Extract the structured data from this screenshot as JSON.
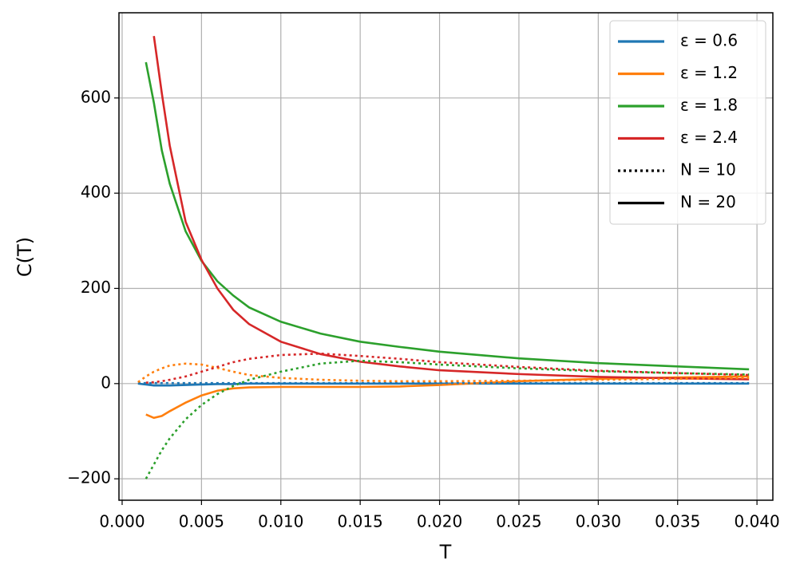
{
  "chart_data": {
    "type": "line",
    "xlabel": "T",
    "ylabel": "C(T)",
    "x": [
      0.001,
      0.0015,
      0.002,
      0.0025,
      0.003,
      0.004,
      0.005,
      0.006,
      0.007,
      0.008,
      0.01,
      0.0125,
      0.015,
      0.0175,
      0.02,
      0.025,
      0.03,
      0.035,
      0.0395
    ],
    "series": [
      {
        "color": "#1f77b4",
        "linestyle": "solid",
        "values": [
          0,
          -2,
          -4,
          -4,
          -4,
          -3,
          -2,
          -1,
          -1,
          0,
          0,
          0,
          0,
          0,
          0,
          0,
          0,
          0,
          0
        ]
      },
      {
        "color": "#ff7f0e",
        "linestyle": "solid",
        "values": [
          null,
          -65,
          -72,
          -68,
          -58,
          -40,
          -25,
          -15,
          -10,
          -8,
          -7,
          -7,
          -7,
          -6,
          -3,
          5,
          10,
          13,
          15
        ]
      },
      {
        "color": "#2ca02c",
        "linestyle": "solid",
        "values": [
          null,
          675,
          590,
          490,
          420,
          320,
          258,
          215,
          185,
          160,
          130,
          105,
          88,
          77,
          67,
          53,
          43,
          36,
          30
        ]
      },
      {
        "color": "#d62728",
        "linestyle": "solid",
        "values": [
          null,
          null,
          730,
          610,
          500,
          340,
          260,
          200,
          155,
          125,
          88,
          62,
          46,
          36,
          28,
          20,
          14,
          11,
          9
        ]
      },
      {
        "color": "#1f77b4",
        "linestyle": "dotted",
        "values": [
          1,
          1,
          1,
          1,
          1,
          1,
          1,
          1,
          1,
          1,
          1,
          1,
          1,
          1,
          1,
          1,
          1,
          1,
          1
        ]
      },
      {
        "color": "#ff7f0e",
        "linestyle": "dotted",
        "values": [
          3,
          15,
          25,
          32,
          38,
          42,
          40,
          33,
          25,
          18,
          12,
          8,
          6,
          5,
          5,
          6,
          8,
          10,
          12
        ]
      },
      {
        "color": "#2ca02c",
        "linestyle": "dotted",
        "values": [
          null,
          -200,
          -170,
          -140,
          -115,
          -75,
          -45,
          -22,
          -5,
          8,
          25,
          42,
          48,
          45,
          40,
          32,
          26,
          22,
          19
        ]
      },
      {
        "color": "#d62728",
        "linestyle": "dotted",
        "values": [
          null,
          2,
          3,
          5,
          8,
          15,
          25,
          35,
          45,
          52,
          60,
          63,
          58,
          52,
          45,
          35,
          27,
          22,
          18
        ]
      }
    ],
    "legend": [
      {
        "label": "ε = 0.6",
        "color": "#1f77b4",
        "linestyle": "solid"
      },
      {
        "label": "ε = 1.2",
        "color": "#ff7f0e",
        "linestyle": "solid"
      },
      {
        "label": "ε = 1.8",
        "color": "#2ca02c",
        "linestyle": "solid"
      },
      {
        "label": "ε = 2.4",
        "color": "#d62728",
        "linestyle": "solid"
      },
      {
        "label": "N = 10",
        "color": "#000000",
        "linestyle": "dotted"
      },
      {
        "label": "N = 20",
        "color": "#000000",
        "linestyle": "solid"
      }
    ],
    "legend_position": "upper right",
    "grid": true,
    "xlim": [
      -0.0002,
      0.041
    ],
    "xticks": [
      {
        "value": 0,
        "label": "0.000"
      },
      {
        "value": 0.005,
        "label": "0.005"
      },
      {
        "value": 0.01,
        "label": "0.010"
      },
      {
        "value": 0.015,
        "label": "0.015"
      },
      {
        "value": 0.02,
        "label": "0.020"
      },
      {
        "value": 0.025,
        "label": "0.025"
      },
      {
        "value": 0.03,
        "label": "0.030"
      },
      {
        "value": 0.035,
        "label": "0.035"
      },
      {
        "value": 0.04,
        "label": "0.040"
      }
    ],
    "ylim": [
      -245,
      779
    ],
    "yticks": [
      {
        "value": -200,
        "label": "−200"
      },
      0,
      200,
      400,
      600
    ]
  }
}
